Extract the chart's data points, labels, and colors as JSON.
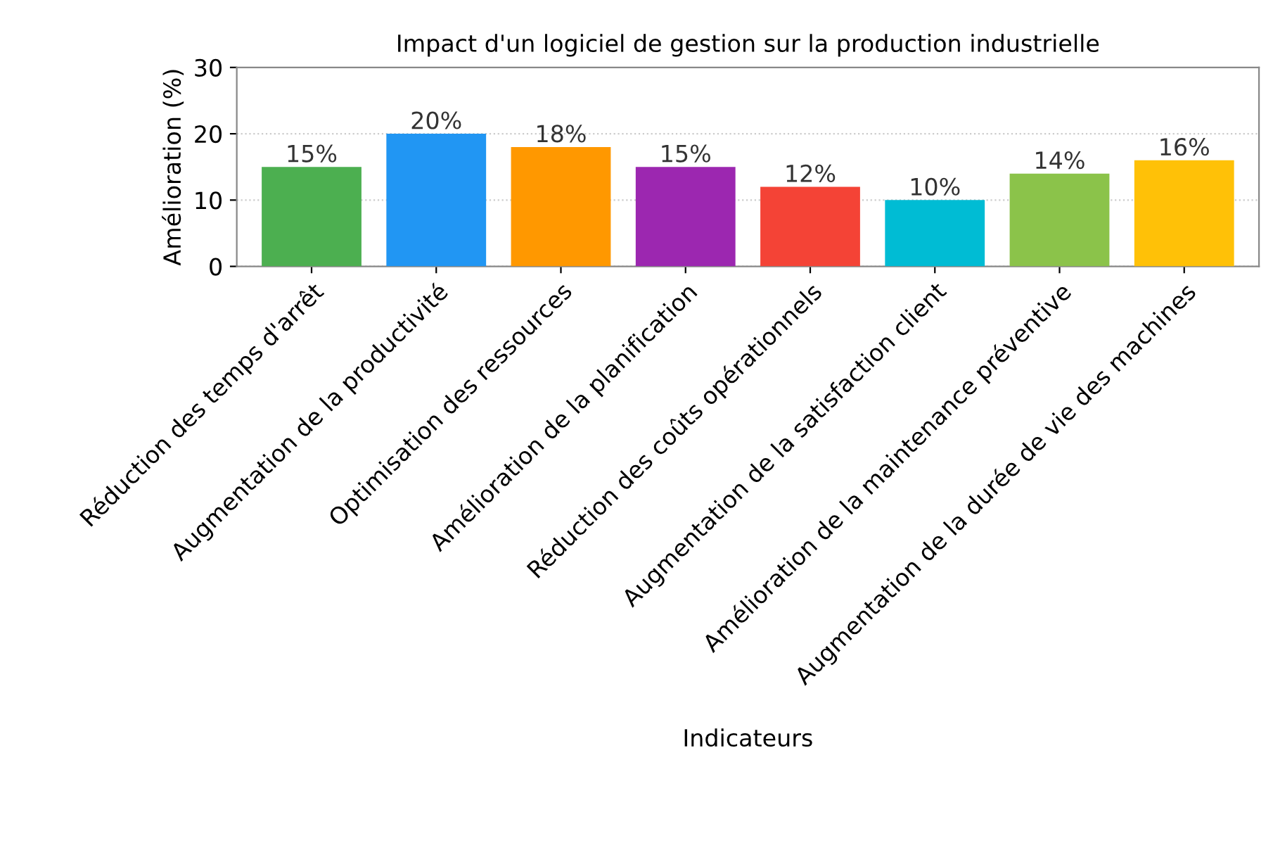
{
  "chart_data": {
    "type": "bar",
    "title": "Impact d'un logiciel de gestion sur la production industrielle",
    "xlabel": "Indicateurs",
    "ylabel": "Amélioration (%)",
    "categories": [
      "Réduction des temps d'arrêt",
      "Augmentation de la productivité",
      "Optimisation des ressources",
      "Amélioration de la planification",
      "Réduction des coûts opérationnels",
      "Augmentation de la satisfaction client",
      "Amélioration de la maintenance préventive",
      "Augmentation de la durée de vie des machines"
    ],
    "values": [
      15,
      20,
      18,
      15,
      12,
      10,
      14,
      16
    ],
    "value_labels": [
      "15%",
      "20%",
      "18%",
      "15%",
      "12%",
      "10%",
      "14%",
      "16%"
    ],
    "colors": [
      "#4caf50",
      "#2196f3",
      "#ff9800",
      "#9c27b0",
      "#f44336",
      "#00bcd4",
      "#8bc34a",
      "#ffc107"
    ],
    "ylim": [
      0,
      30
    ],
    "yticks": [
      0,
      10,
      20,
      30
    ],
    "grid": "y"
  }
}
